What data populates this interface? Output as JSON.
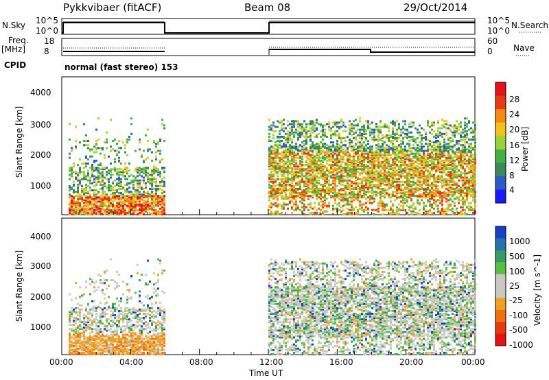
{
  "header": {
    "station": "Pykkvibaer (fitACF)",
    "beam": "Beam 08",
    "date": "29/Oct/2014"
  },
  "panels": {
    "nsky_label": "N.Sky",
    "nsky_ticks": [
      "10^5",
      "10^0"
    ],
    "nsearch_label": "N.Search",
    "nsearch_ticks": [
      "10^5",
      "10^0"
    ],
    "freq_label_line1": "Freq.",
    "freq_label_line2": "[MHz]",
    "freq_ticks": [
      "18",
      "8"
    ],
    "nave_label": "Nave",
    "nave_ticks": [
      "60",
      "0"
    ],
    "cpid_label": "CPID",
    "cpid_text": "normal (fast stereo) 153"
  },
  "chart_data": [
    {
      "type": "heatmap",
      "name": "power",
      "ylabel": "Slant Range [km]",
      "yticks": [
        "4000",
        "3000",
        "2000",
        "1000"
      ],
      "ylim": [
        200,
        4600
      ],
      "colorbar_label": "Power [dB]",
      "colorbar_ticks": [
        "28",
        "24",
        "20",
        "16",
        "12",
        "8",
        "4"
      ],
      "colors": [
        "#1a1aff",
        "#2a5cc8",
        "#3c8a5a",
        "#43b043",
        "#9ad23a",
        "#f2c21a",
        "#f58a12",
        "#e83a12",
        "#e8101a"
      ],
      "data_intervals_hours": [
        [
          0.4,
          6.0
        ],
        [
          12.0,
          24.0
        ]
      ]
    },
    {
      "type": "heatmap",
      "name": "velocity",
      "ylabel": "Slant Range [km]",
      "yticks": [
        "4000",
        "3000",
        "2000",
        "1000"
      ],
      "ylim": [
        200,
        4600
      ],
      "colorbar_label": "Velocity [m s^-1]",
      "colorbar_ticks": [
        "1000",
        "500",
        "100",
        "25",
        "-25",
        "-100",
        "-500",
        "-1000"
      ],
      "colors": [
        "#1840c8",
        "#2a70b0",
        "#3a9a6a",
        "#58c040",
        "#c8c8c0",
        "#c8c8c0",
        "#f0a020",
        "#f07010",
        "#e83a10",
        "#e81010"
      ],
      "data_intervals_hours": [
        [
          0.4,
          6.0
        ],
        [
          12.0,
          24.0
        ]
      ]
    }
  ],
  "xaxis": {
    "ticks": [
      "00:00",
      "04:00",
      "08:00",
      "12:00",
      "16:00",
      "20:00",
      "00:00"
    ],
    "label": "Time UT",
    "range_hours": [
      0,
      24
    ]
  },
  "colors": {
    "axis": "#000000",
    "background": "#ffffff"
  }
}
